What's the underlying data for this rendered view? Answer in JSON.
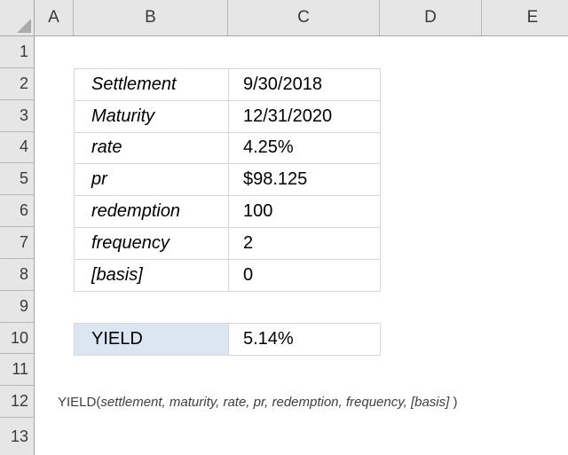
{
  "columns": [
    "A",
    "B",
    "C",
    "D",
    "E"
  ],
  "row_numbers": [
    "1",
    "2",
    "3",
    "4",
    "5",
    "6",
    "7",
    "8",
    "9",
    "10",
    "11",
    "12",
    "13"
  ],
  "table": {
    "rows": [
      {
        "label": "Settlement",
        "value": "9/30/2018"
      },
      {
        "label": "Maturity",
        "value": "12/31/2020"
      },
      {
        "label": "rate",
        "value": "4.25%"
      },
      {
        "label": "pr",
        "value": "$98.125"
      },
      {
        "label": "redemption",
        "value": "100"
      },
      {
        "label": "frequency",
        "value": "2"
      },
      {
        "label": "[basis]",
        "value": "0"
      }
    ]
  },
  "result": {
    "label": "YIELD",
    "value": "5.14%"
  },
  "formula": {
    "function_name": "YIELD(",
    "arguments": "settlement, maturity, rate, pr, redemption, frequency, [basis]",
    "closing": " )"
  },
  "colors": {
    "result_fill": "#dce6f2",
    "table_border": "#d6d6d6",
    "header_bg": "#e6e6e6"
  }
}
